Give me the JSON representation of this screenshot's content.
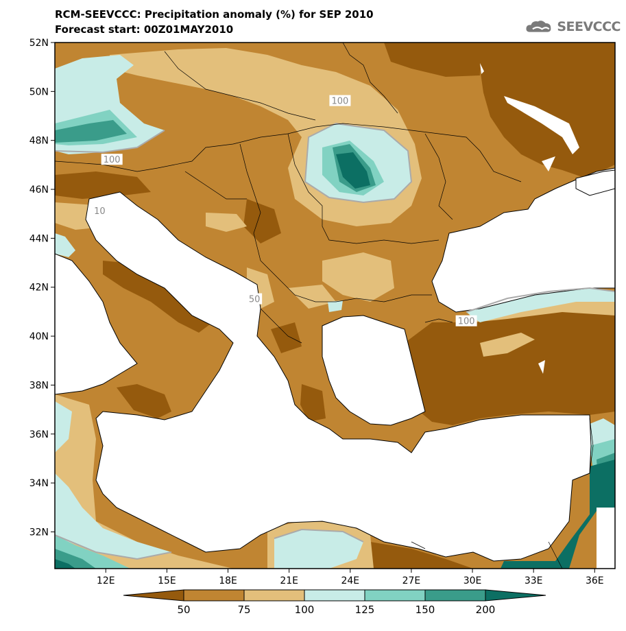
{
  "header": {
    "title": "RCM-SEEVCCC: Precipitation anomaly (%) for SEP 2010",
    "subtitle": "Forecast start: 00Z01MAY2010",
    "logo_text": "SEEVCCC",
    "logo_icon": "cloud-icon"
  },
  "map": {
    "lon_range": [
      9.5,
      37.0
    ],
    "lat_range": [
      30.5,
      52.0
    ],
    "lat_ticks": [
      "52N",
      "50N",
      "48N",
      "46N",
      "44N",
      "42N",
      "40N",
      "38N",
      "36N",
      "34N",
      "32N"
    ],
    "lat_tick_values": [
      52,
      50,
      48,
      46,
      44,
      42,
      40,
      38,
      36,
      34,
      32
    ],
    "lon_ticks": [
      "12E",
      "15E",
      "18E",
      "21E",
      "24E",
      "27E",
      "30E",
      "33E",
      "36E"
    ],
    "lon_tick_values": [
      12,
      15,
      18,
      21,
      24,
      27,
      30,
      33,
      36
    ],
    "contour_labels": [
      {
        "text": "100",
        "lon": 23.5,
        "lat": 49.6
      },
      {
        "text": "100",
        "lon": 12.3,
        "lat": 47.2
      },
      {
        "text": "10",
        "lon": 11.7,
        "lat": 45.1
      },
      {
        "text": "50",
        "lon": 19.3,
        "lat": 41.5
      },
      {
        "text": "100",
        "lon": 29.7,
        "lat": 40.6
      }
    ]
  },
  "legend": {
    "labels": [
      "50",
      "75",
      "100",
      "125",
      "150",
      "200"
    ],
    "colors": [
      "#955a0d",
      "#c08532",
      "#e3bf7b",
      "#c8ece7",
      "#81d2c2",
      "#3a9c8a",
      "#0c6f63"
    ]
  }
}
